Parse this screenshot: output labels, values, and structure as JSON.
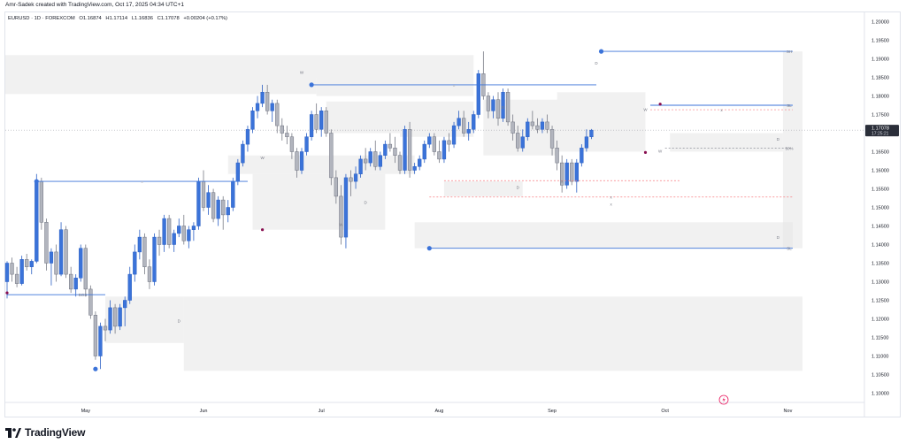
{
  "header": {
    "credit": "Amr-Sadek created with TradingView.com, Oct 17, 2025 04:34 UTC+1"
  },
  "symbol": {
    "name": "EURUSD · 1D · FOREXCOM",
    "open": "O1.16874",
    "high": "H1.17114",
    "low": "L1.16836",
    "close": "C1.17078",
    "change": "+0.00204 (+0.17%)"
  },
  "footer": {
    "brand": "TradingView"
  },
  "colors": {
    "bull": "#3b73d9",
    "bear": "#b2b5be",
    "zone": "#e6e6e6",
    "line": "#3b73d9",
    "dashed": "#f77c80",
    "price_tag_bg": "#2a2e39",
    "accent": "#e91e63"
  },
  "chart_data": {
    "type": "candlestick",
    "symbol": "EURUSD",
    "timeframe": "1D",
    "x_labels": [
      "May",
      "Jun",
      "Jul",
      "Aug",
      "Sep",
      "Oct",
      "Nov"
    ],
    "x_label_index": [
      16,
      40,
      64,
      88,
      111,
      134,
      159
    ],
    "y_ticks": [
      1.1,
      1.105,
      1.11,
      1.115,
      1.12,
      1.125,
      1.13,
      1.135,
      1.14,
      1.145,
      1.15,
      1.155,
      1.16,
      1.165,
      1.17,
      1.175,
      1.18,
      1.185,
      1.19,
      1.195,
      1.2
    ],
    "ylim": [
      1.0975,
      1.2025
    ],
    "last_price": "1.17078",
    "countdown": "17:25:21",
    "candles": [
      [
        1.13,
        1.1355,
        1.1255,
        1.135
      ],
      [
        1.135,
        1.1365,
        1.13,
        1.132
      ],
      [
        1.132,
        1.134,
        1.1285,
        1.1295
      ],
      [
        1.1295,
        1.137,
        1.129,
        1.136
      ],
      [
        1.136,
        1.1375,
        1.133,
        1.134
      ],
      [
        1.134,
        1.136,
        1.132,
        1.1355
      ],
      [
        1.1355,
        1.159,
        1.135,
        1.157
      ],
      [
        1.157,
        1.158,
        1.144,
        1.146
      ],
      [
        1.146,
        1.147,
        1.133,
        1.135
      ],
      [
        1.135,
        1.139,
        1.129,
        1.138
      ],
      [
        1.138,
        1.14,
        1.13,
        1.132
      ],
      [
        1.132,
        1.146,
        1.1315,
        1.144
      ],
      [
        1.144,
        1.145,
        1.131,
        1.132
      ],
      [
        1.132,
        1.134,
        1.127,
        1.128
      ],
      [
        1.128,
        1.132,
        1.126,
        1.131
      ],
      [
        1.131,
        1.14,
        1.13,
        1.139
      ],
      [
        1.139,
        1.14,
        1.126,
        1.128
      ],
      [
        1.128,
        1.129,
        1.12,
        1.121
      ],
      [
        1.121,
        1.122,
        1.109,
        1.11
      ],
      [
        1.11,
        1.119,
        1.1065,
        1.118
      ],
      [
        1.118,
        1.12,
        1.114,
        1.117
      ],
      [
        1.117,
        1.125,
        1.116,
        1.123
      ],
      [
        1.123,
        1.124,
        1.116,
        1.118
      ],
      [
        1.118,
        1.124,
        1.117,
        1.123
      ],
      [
        1.123,
        1.126,
        1.118,
        1.125
      ],
      [
        1.125,
        1.134,
        1.124,
        1.132
      ],
      [
        1.132,
        1.14,
        1.13,
        1.138
      ],
      [
        1.138,
        1.144,
        1.136,
        1.142
      ],
      [
        1.142,
        1.143,
        1.132,
        1.134
      ],
      [
        1.134,
        1.136,
        1.128,
        1.13
      ],
      [
        1.13,
        1.143,
        1.129,
        1.142
      ],
      [
        1.142,
        1.144,
        1.137,
        1.14
      ],
      [
        1.14,
        1.148,
        1.138,
        1.147
      ],
      [
        1.147,
        1.148,
        1.139,
        1.14
      ],
      [
        1.14,
        1.144,
        1.138,
        1.143
      ],
      [
        1.143,
        1.147,
        1.142,
        1.145
      ],
      [
        1.145,
        1.148,
        1.14,
        1.141
      ],
      [
        1.141,
        1.145,
        1.139,
        1.144
      ],
      [
        1.144,
        1.146,
        1.141,
        1.145
      ],
      [
        1.145,
        1.158,
        1.144,
        1.157
      ],
      [
        1.157,
        1.16,
        1.149,
        1.15
      ],
      [
        1.15,
        1.156,
        1.148,
        1.154
      ],
      [
        1.154,
        1.155,
        1.146,
        1.147
      ],
      [
        1.147,
        1.153,
        1.145,
        1.152
      ],
      [
        1.152,
        1.153,
        1.144,
        1.148
      ],
      [
        1.148,
        1.152,
        1.146,
        1.15
      ],
      [
        1.15,
        1.158,
        1.149,
        1.157
      ],
      [
        1.157,
        1.163,
        1.156,
        1.162
      ],
      [
        1.162,
        1.168,
        1.161,
        1.167
      ],
      [
        1.167,
        1.172,
        1.165,
        1.171
      ],
      [
        1.171,
        1.177,
        1.17,
        1.176
      ],
      [
        1.176,
        1.18,
        1.174,
        1.178
      ],
      [
        1.178,
        1.183,
        1.177,
        1.181
      ],
      [
        1.181,
        1.183,
        1.175,
        1.176
      ],
      [
        1.176,
        1.179,
        1.173,
        1.178
      ],
      [
        1.178,
        1.179,
        1.17,
        1.172
      ],
      [
        1.172,
        1.174,
        1.168,
        1.17
      ],
      [
        1.17,
        1.172,
        1.167,
        1.169
      ],
      [
        1.169,
        1.17,
        1.163,
        1.165
      ],
      [
        1.165,
        1.166,
        1.158,
        1.16
      ],
      [
        1.16,
        1.166,
        1.159,
        1.165
      ],
      [
        1.165,
        1.17,
        1.164,
        1.169
      ],
      [
        1.169,
        1.176,
        1.168,
        1.175
      ],
      [
        1.175,
        1.178,
        1.17,
        1.171
      ],
      [
        1.171,
        1.177,
        1.169,
        1.176
      ],
      [
        1.176,
        1.177,
        1.169,
        1.17
      ],
      [
        1.17,
        1.171,
        1.156,
        1.158
      ],
      [
        1.158,
        1.16,
        1.151,
        1.153
      ],
      [
        1.153,
        1.156,
        1.14,
        1.142
      ],
      [
        1.142,
        1.159,
        1.139,
        1.158
      ],
      [
        1.158,
        1.16,
        1.153,
        1.157
      ],
      [
        1.157,
        1.161,
        1.155,
        1.159
      ],
      [
        1.159,
        1.164,
        1.158,
        1.163
      ],
      [
        1.163,
        1.166,
        1.16,
        1.162
      ],
      [
        1.162,
        1.166,
        1.161,
        1.165
      ],
      [
        1.165,
        1.168,
        1.16,
        1.161
      ],
      [
        1.161,
        1.165,
        1.16,
        1.164
      ],
      [
        1.164,
        1.168,
        1.163,
        1.167
      ],
      [
        1.167,
        1.17,
        1.165,
        1.166
      ],
      [
        1.166,
        1.169,
        1.162,
        1.164
      ],
      [
        1.164,
        1.165,
        1.159,
        1.16
      ],
      [
        1.16,
        1.172,
        1.159,
        1.171
      ],
      [
        1.171,
        1.173,
        1.158,
        1.16
      ],
      [
        1.16,
        1.162,
        1.159,
        1.161
      ],
      [
        1.161,
        1.164,
        1.16,
        1.163
      ],
      [
        1.163,
        1.168,
        1.162,
        1.167
      ],
      [
        1.167,
        1.17,
        1.166,
        1.169
      ],
      [
        1.169,
        1.17,
        1.164,
        1.165
      ],
      [
        1.165,
        1.168,
        1.162,
        1.163
      ],
      [
        1.163,
        1.169,
        1.162,
        1.168
      ],
      [
        1.168,
        1.17,
        1.165,
        1.167
      ],
      [
        1.167,
        1.173,
        1.166,
        1.172
      ],
      [
        1.172,
        1.176,
        1.171,
        1.174
      ],
      [
        1.174,
        1.176,
        1.169,
        1.17
      ],
      [
        1.17,
        1.173,
        1.168,
        1.171
      ],
      [
        1.171,
        1.176,
        1.17,
        1.175
      ],
      [
        1.175,
        1.187,
        1.174,
        1.186
      ],
      [
        1.186,
        1.192,
        1.179,
        1.18
      ],
      [
        1.18,
        1.181,
        1.174,
        1.176
      ],
      [
        1.176,
        1.18,
        1.174,
        1.179
      ],
      [
        1.179,
        1.181,
        1.172,
        1.174
      ],
      [
        1.174,
        1.182,
        1.173,
        1.181
      ],
      [
        1.181,
        1.182,
        1.172,
        1.173
      ],
      [
        1.173,
        1.175,
        1.168,
        1.17
      ],
      [
        1.17,
        1.172,
        1.165,
        1.166
      ],
      [
        1.166,
        1.171,
        1.165,
        1.169
      ],
      [
        1.169,
        1.174,
        1.168,
        1.173
      ],
      [
        1.173,
        1.176,
        1.171,
        1.172
      ],
      [
        1.172,
        1.174,
        1.17,
        1.171
      ],
      [
        1.171,
        1.174,
        1.17,
        1.173
      ],
      [
        1.173,
        1.175,
        1.17,
        1.171
      ],
      [
        1.171,
        1.172,
        1.164,
        1.166
      ],
      [
        1.166,
        1.168,
        1.16,
        1.162
      ],
      [
        1.162,
        1.164,
        1.154,
        1.156
      ],
      [
        1.156,
        1.163,
        1.155,
        1.162
      ],
      [
        1.162,
        1.163,
        1.156,
        1.157
      ],
      [
        1.157,
        1.163,
        1.154,
        1.162
      ],
      [
        1.162,
        1.167,
        1.161,
        1.166
      ],
      [
        1.166,
        1.171,
        1.165,
        1.169
      ],
      [
        1.169,
        1.1711,
        1.1684,
        1.1708
      ]
    ],
    "zones": [
      {
        "x0": -1,
        "x1": 95,
        "y0": 1.185,
        "y1": 1.191
      },
      {
        "x0": -1,
        "x1": 63,
        "y0": 1.1805,
        "y1": 1.185
      },
      {
        "x0": 63,
        "x1": 95,
        "y0": 1.18,
        "y1": 1.185
      },
      {
        "x0": 65,
        "x1": 80,
        "y0": 1.17,
        "y1": 1.1785
      },
      {
        "x0": 80,
        "x1": 95,
        "y0": 1.169,
        "y1": 1.1785
      },
      {
        "x0": 97,
        "x1": 112,
        "y0": 1.164,
        "y1": 1.179
      },
      {
        "x0": 112,
        "x1": 130,
        "y0": 1.165,
        "y1": 1.181
      },
      {
        "x0": 45,
        "x1": 83,
        "y0": 1.159,
        "y1": 1.164
      },
      {
        "x0": 50,
        "x1": 77,
        "y0": 1.144,
        "y1": 1.159
      },
      {
        "x0": 89,
        "x1": 105,
        "y0": 1.153,
        "y1": 1.157
      },
      {
        "x0": 135,
        "x1": 158,
        "y0": 1.165,
        "y1": 1.17
      },
      {
        "x0": 83,
        "x1": 160,
        "y0": 1.139,
        "y1": 1.146
      },
      {
        "x0": 20,
        "x1": 36,
        "y0": 1.1135,
        "y1": 1.126
      },
      {
        "x0": 36,
        "x1": 170,
        "y0": 1.106,
        "y1": 1.126
      },
      {
        "x0": 158,
        "x1": 164,
        "y0": 1.139,
        "y1": 1.192
      }
    ],
    "lines": [
      {
        "x0": 6,
        "x1": 49,
        "y": 1.157,
        "label": "=",
        "style": "solid"
      },
      {
        "x0": 62,
        "x1": 120,
        "y": 1.183,
        "label": "=",
        "style": "solid"
      },
      {
        "x0": 121,
        "x1": 160,
        "y": 1.192,
        "label": "SH",
        "style": "solid"
      },
      {
        "x0": 131,
        "x1": 160,
        "y": 1.1775,
        "label": "SL",
        "style": "solid"
      },
      {
        "x0": 86,
        "x1": 160,
        "y": 1.139,
        "label": "SL",
        "style": "solid"
      },
      {
        "x0": 0,
        "x1": 20,
        "y": 1.1265,
        "label": "BOS",
        "style": "solid"
      },
      {
        "x0": 131,
        "x1": 160,
        "y": 1.1763,
        "label": "x",
        "style": "dashed"
      },
      {
        "x0": 86,
        "x1": 160,
        "y": 1.1528,
        "label": "x",
        "style": "dashed"
      },
      {
        "x0": 89,
        "x1": 137,
        "y": 1.1572,
        "label": "x",
        "style": "dashed"
      },
      {
        "x0": 134,
        "x1": 160,
        "y": 1.166,
        "label": "50%",
        "style": "gray-dashed"
      }
    ],
    "markers": [
      {
        "i": 6,
        "y": 1.157,
        "kind": "dot"
      },
      {
        "i": 18,
        "y": 1.1065,
        "kind": "dot"
      },
      {
        "i": 62,
        "y": 1.183,
        "kind": "dot"
      },
      {
        "i": 86,
        "y": 1.139,
        "kind": "dot"
      },
      {
        "i": 121,
        "y": 1.192,
        "kind": "dot"
      },
      {
        "i": 0,
        "y": 1.127,
        "kind": "small-red"
      },
      {
        "i": 52,
        "y": 1.144,
        "kind": "small-red"
      },
      {
        "i": 130,
        "y": 1.1648,
        "kind": "small-red"
      },
      {
        "i": 133,
        "y": 1.1778,
        "kind": "small-red"
      }
    ],
    "zone_labels": [
      {
        "i": 60,
        "y": 1.186,
        "text": "W"
      },
      {
        "i": 52,
        "y": 1.163,
        "text": "W"
      },
      {
        "i": 73,
        "y": 1.151,
        "text": "D"
      },
      {
        "i": 68,
        "y": 1.145,
        "text": "W"
      },
      {
        "i": 35,
        "y": 1.119,
        "text": "D"
      },
      {
        "i": 101,
        "y": 1.1765,
        "text": "D"
      },
      {
        "i": 104,
        "y": 1.155,
        "text": "D"
      },
      {
        "i": 120,
        "y": 1.1885,
        "text": "D"
      },
      {
        "i": 130,
        "y": 1.176,
        "text": "W"
      },
      {
        "i": 133,
        "y": 1.1648,
        "text": "W"
      },
      {
        "i": 157,
        "y": 1.168,
        "text": "D"
      },
      {
        "i": 157,
        "y": 1.1415,
        "text": "D"
      },
      {
        "i": 123,
        "y": 1.1505,
        "text": "x"
      }
    ]
  }
}
